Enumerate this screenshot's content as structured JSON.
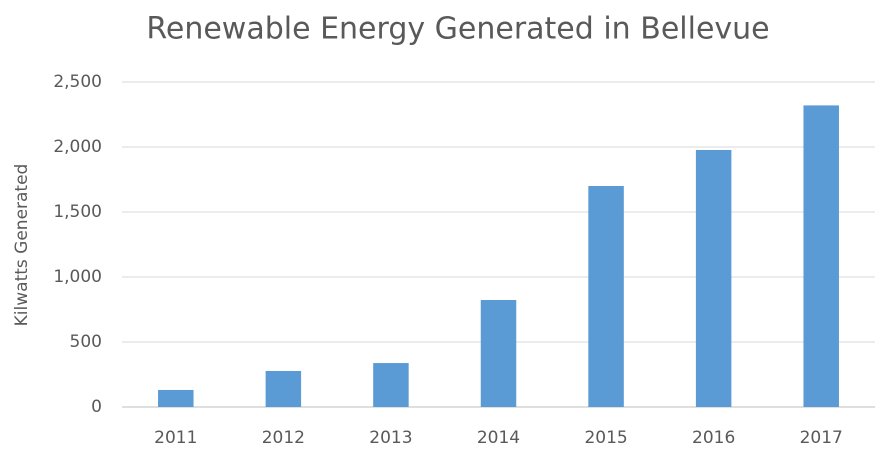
{
  "chart_data": {
    "type": "bar",
    "title": "Renewable Energy Generated in Bellevue",
    "y_label": "Kilwatts Generated",
    "categories": [
      "2011",
      "2012",
      "2013",
      "2014",
      "2015",
      "2016",
      "2017"
    ],
    "values": [
      131,
      277,
      338,
      823,
      1700,
      1977,
      2320
    ],
    "color": "#5b9bd5",
    "ylim": [
      0,
      2500
    ],
    "yticks": [
      0,
      500,
      {
        "value": 1000,
        "label": "1,000"
      },
      {
        "value": 1500,
        "label": "1,500"
      },
      {
        "value": 2000,
        "label": "2,000"
      },
      {
        "value": 2500,
        "label": "2,500"
      }
    ],
    "grid": true
  }
}
